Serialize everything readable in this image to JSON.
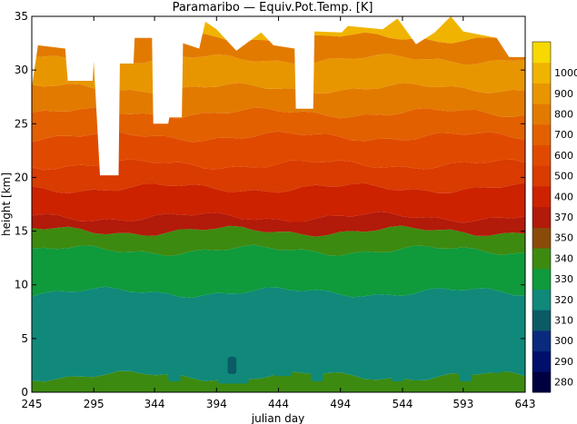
{
  "chart_data": {
    "type": "heatmap",
    "title": "Paramaribo — Equiv.Pot.Temp. [K]",
    "xlabel": "julian day",
    "ylabel": "height [km]",
    "xlim": [
      245,
      643
    ],
    "ylim": [
      0,
      35
    ],
    "x_ticks": [
      "245",
      "295",
      "344",
      "394",
      "444",
      "494",
      "544",
      "593",
      "643"
    ],
    "y_ticks": [
      "0",
      "5",
      "10",
      "15",
      "20",
      "25",
      "30",
      "35"
    ],
    "colorbar": {
      "levels": [
        "280",
        "290",
        "300",
        "310",
        "320",
        "330",
        "340",
        "350",
        "370",
        "400",
        "500",
        "600",
        "700",
        "800",
        "900",
        "1000"
      ],
      "colors": [
        "#000040",
        "#00106a",
        "#0a2a7e",
        "#0b5a66",
        "#10897a",
        "#0f9a3c",
        "#3d8a10",
        "#8a4a0a",
        "#b21a0a",
        "#cc2200",
        "#d93b00",
        "#e04a00",
        "#e26000",
        "#e27a00",
        "#e89600",
        "#f0b400",
        "#f7d800"
      ]
    },
    "bands": [
      {
        "top": 1.5,
        "color": "#3d8a10"
      },
      {
        "top": 9.3,
        "color": "#10897a"
      },
      {
        "top": 13.2,
        "color": "#0f9a3c"
      },
      {
        "top": 15.0,
        "color": "#3d8a10"
      },
      {
        "top": 16.3,
        "color": "#b21a0a"
      },
      {
        "top": 19.0,
        "color": "#cc2200"
      },
      {
        "top": 21.2,
        "color": "#d93b00"
      },
      {
        "top": 23.8,
        "color": "#e04a00"
      },
      {
        "top": 26.0,
        "color": "#e26000"
      },
      {
        "top": 28.3,
        "color": "#e27a00"
      },
      {
        "top": 31.0,
        "color": "#e89600"
      },
      {
        "top": 33.0,
        "color": "#e27a00"
      },
      {
        "top": 35.0,
        "color": "#f0b400"
      }
    ],
    "profile_tops": [
      {
        "x": 245,
        "top": 28.4
      },
      {
        "x": 250,
        "top": 32.3
      },
      {
        "x": 272,
        "top": 32.0
      },
      {
        "x": 274,
        "top": 29.0
      },
      {
        "x": 294,
        "top": 29.0
      },
      {
        "x": 295,
        "top": 30.8
      },
      {
        "x": 300,
        "top": 20.2
      },
      {
        "x": 315,
        "top": 20.2
      },
      {
        "x": 316,
        "top": 30.6
      },
      {
        "x": 327,
        "top": 30.6
      },
      {
        "x": 328,
        "top": 33.0
      },
      {
        "x": 342,
        "top": 33.0
      },
      {
        "x": 343,
        "top": 25.0
      },
      {
        "x": 355,
        "top": 25.0
      },
      {
        "x": 356,
        "top": 25.6
      },
      {
        "x": 366,
        "top": 25.6
      },
      {
        "x": 367,
        "top": 32.5
      },
      {
        "x": 380,
        "top": 32.0
      },
      {
        "x": 385,
        "top": 34.5
      },
      {
        "x": 394,
        "top": 33.8
      },
      {
        "x": 410,
        "top": 31.8
      },
      {
        "x": 430,
        "top": 33.5
      },
      {
        "x": 440,
        "top": 32.3
      },
      {
        "x": 457,
        "top": 32.0
      },
      {
        "x": 458,
        "top": 26.4
      },
      {
        "x": 472,
        "top": 26.4
      },
      {
        "x": 473,
        "top": 33.6
      },
      {
        "x": 495,
        "top": 33.5
      },
      {
        "x": 500,
        "top": 34.1
      },
      {
        "x": 528,
        "top": 33.8
      },
      {
        "x": 540,
        "top": 34.8
      },
      {
        "x": 555,
        "top": 32.4
      },
      {
        "x": 570,
        "top": 33.5
      },
      {
        "x": 583,
        "top": 35.0
      },
      {
        "x": 593,
        "top": 33.6
      },
      {
        "x": 620,
        "top": 33.0
      },
      {
        "x": 630,
        "top": 31.2
      },
      {
        "x": 643,
        "top": 31.2
      }
    ],
    "low_patches": [
      {
        "x": 260,
        "x2": 268,
        "y": 2.5,
        "y2": 6.5,
        "color": "#10897a"
      },
      {
        "x": 285,
        "x2": 292,
        "y": 1.5,
        "y2": 5.0,
        "color": "#10897a"
      },
      {
        "x": 318,
        "x2": 330,
        "y": 2.0,
        "y2": 7.0,
        "color": "#10897a"
      },
      {
        "x": 355,
        "x2": 365,
        "y": 1.0,
        "y2": 6.0,
        "color": "#10897a"
      },
      {
        "x": 395,
        "x2": 420,
        "y": 0.8,
        "y2": 6.5,
        "color": "#10897a"
      },
      {
        "x": 403,
        "x2": 410,
        "y": 1.7,
        "y2": 3.3,
        "color": "#0b5a66"
      },
      {
        "x": 440,
        "x2": 455,
        "y": 1.5,
        "y2": 6.0,
        "color": "#10897a"
      },
      {
        "x": 470,
        "x2": 480,
        "y": 1.0,
        "y2": 5.5,
        "color": "#10897a"
      },
      {
        "x": 505,
        "x2": 515,
        "y": 1.8,
        "y2": 5.5,
        "color": "#10897a"
      },
      {
        "x": 535,
        "x2": 545,
        "y": 1.0,
        "y2": 6.5,
        "color": "#10897a"
      },
      {
        "x": 560,
        "x2": 570,
        "y": 2.0,
        "y2": 7.0,
        "color": "#10897a"
      },
      {
        "x": 590,
        "x2": 600,
        "y": 1.0,
        "y2": 5.0,
        "color": "#10897a"
      },
      {
        "x": 615,
        "x2": 625,
        "y": 1.8,
        "y2": 6.0,
        "color": "#10897a"
      }
    ],
    "grid": false,
    "legend": "colorbar-right"
  }
}
